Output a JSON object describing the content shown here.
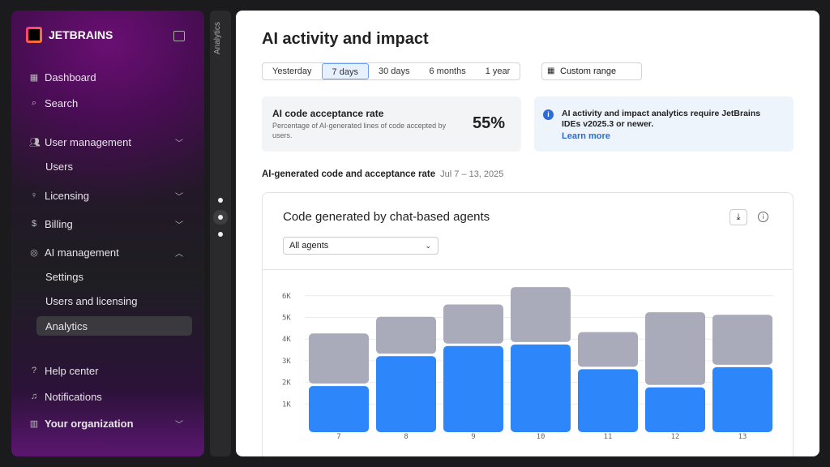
{
  "sidebar": {
    "brand": "JETBRAINS",
    "items": [
      {
        "label": "Dashboard",
        "icon": "grid-icon"
      },
      {
        "label": "Search",
        "icon": "search-icon"
      },
      {
        "label": "User management",
        "icon": "users-icon",
        "chevron": "down"
      },
      {
        "label": "Users"
      },
      {
        "label": "Licensing",
        "icon": "key-icon",
        "chevron": "down"
      },
      {
        "label": "Billing",
        "icon": "dollar-icon",
        "chevron": "down"
      },
      {
        "label": "AI management",
        "icon": "ai-spiral-icon",
        "chevron": "up"
      },
      {
        "label": "Settings"
      },
      {
        "label": "Users and licensing"
      },
      {
        "label": "Analytics",
        "active": true
      },
      {
        "label": "Help center",
        "icon": "help-icon"
      },
      {
        "label": "Notifications",
        "icon": "bell-icon"
      },
      {
        "label": "Your organization",
        "icon": "building-icon",
        "chevron": "down"
      }
    ]
  },
  "rail": {
    "label": "Analytics"
  },
  "main": {
    "title": "AI activity and impact",
    "ranges": [
      "Yesterday",
      "7 days",
      "30 days",
      "6 months",
      "1 year"
    ],
    "selected_range": "7 days",
    "custom_range": "Custom range",
    "acceptance": {
      "title": "AI code acceptance rate",
      "desc": "Percentage of AI-generated lines of code accepted by users.",
      "value": "55%"
    },
    "notice": {
      "text": "AI activity and impact analytics require JetBrains IDEs v2025.3 or newer.",
      "link": "Learn more"
    },
    "section_title": "AI-generated code and acceptance rate",
    "section_date": "Jul 7 – 13, 2025",
    "chart_card": {
      "title": "Code generated by chat-based agents",
      "agent_filter": "All agents"
    }
  },
  "colors": {
    "accent": "#2d87fb",
    "gray_series": "#a9abbb"
  },
  "chart_data": {
    "type": "bar",
    "stacked": true,
    "categories": [
      "7",
      "8",
      "9",
      "10",
      "11",
      "12",
      "13"
    ],
    "yticks": [
      "1K",
      "2K",
      "3K",
      "4K",
      "5K",
      "6K"
    ],
    "ylim": [
      0,
      6500
    ],
    "grid": true,
    "series": [
      {
        "color": "#2d87fb",
        "values": [
          1830,
          3210,
          3680,
          3750,
          2610,
          1770,
          2700
        ]
      },
      {
        "color": "#a9abbb",
        "values": [
          2430,
          1820,
          1920,
          2650,
          1710,
          3470,
          2420
        ]
      }
    ]
  }
}
